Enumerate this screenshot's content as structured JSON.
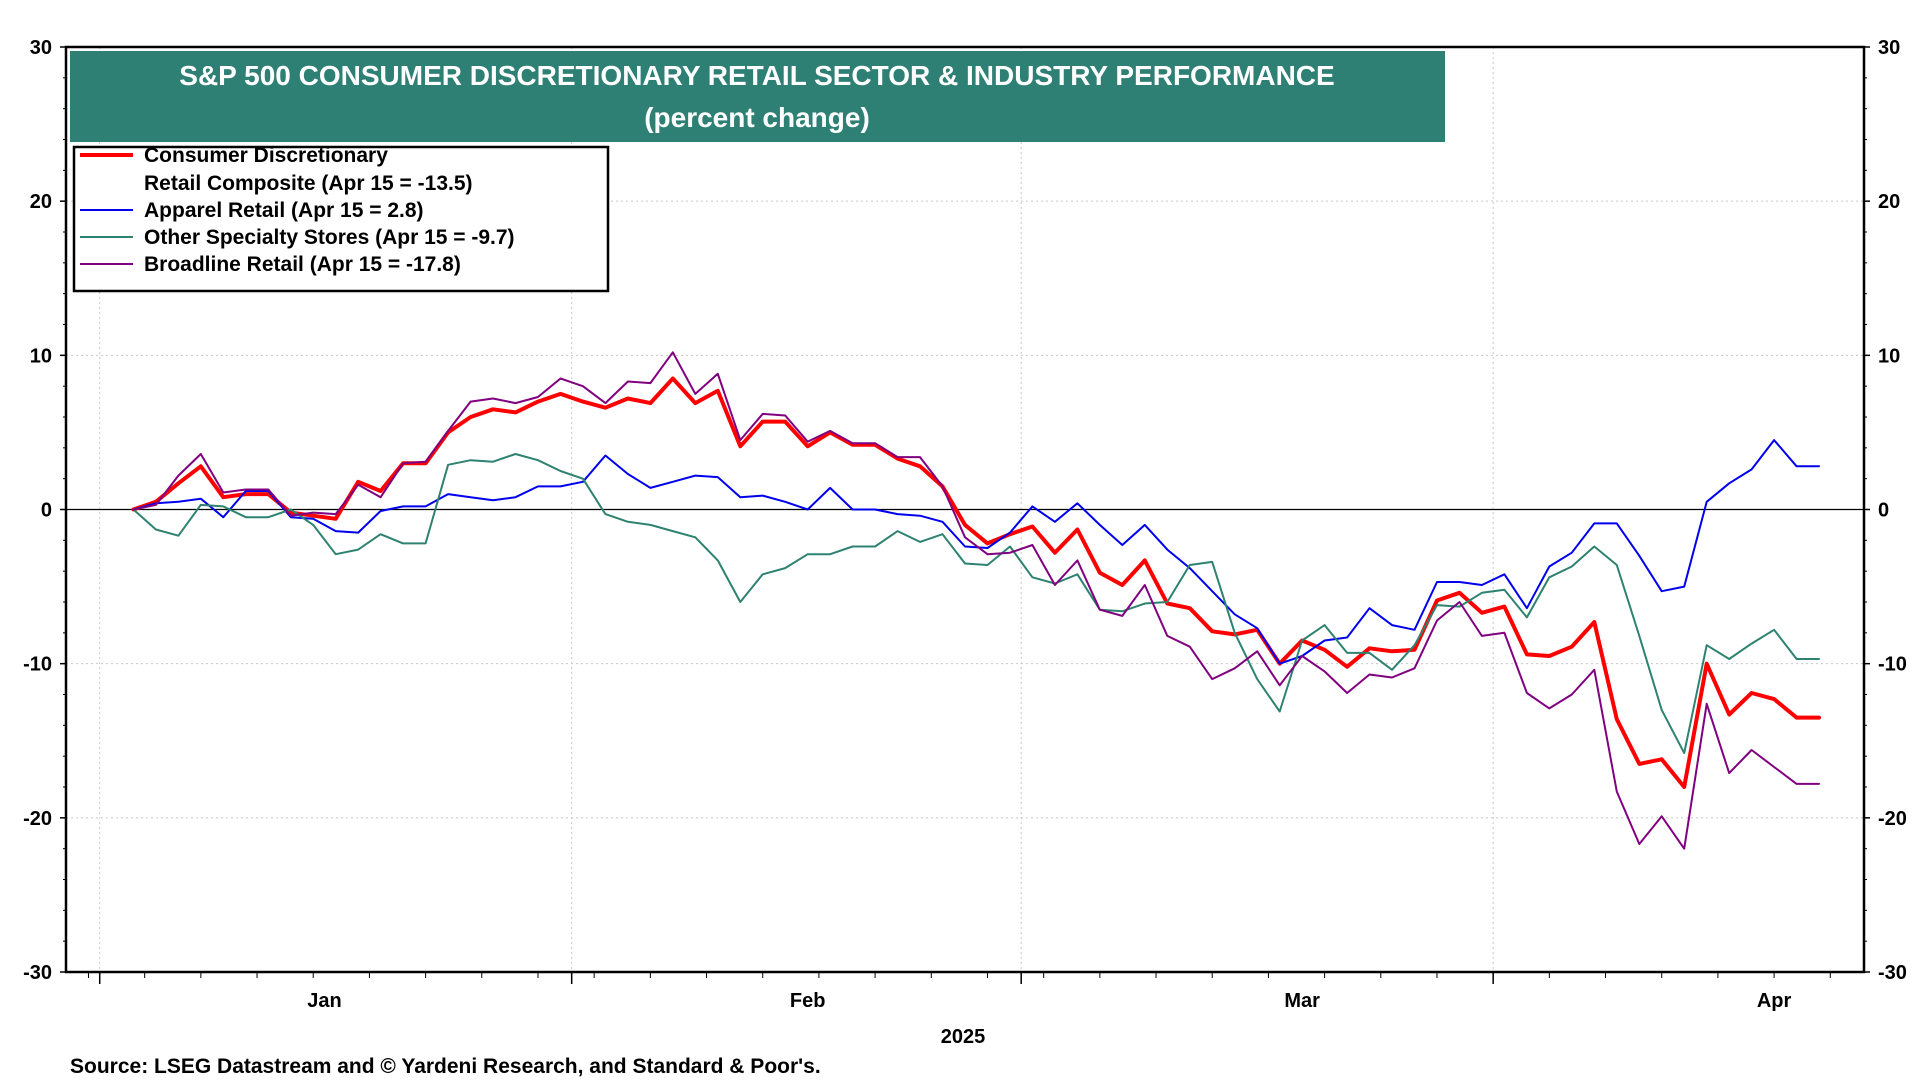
{
  "chart_data": {
    "type": "line",
    "title": "S&P 500 CONSUMER DISCRETIONARY RETAIL SECTOR & INDUSTRY PERFORMANCE",
    "subtitle": "(percent change)",
    "xlabel": "2025",
    "ylabel": "",
    "ylim": [
      -30,
      30
    ],
    "y_ticks": [
      30,
      20,
      10,
      0,
      -10,
      -20,
      -30
    ],
    "x_month_labels": [
      {
        "label": "Jan",
        "t": 8.5
      },
      {
        "label": "Feb",
        "t": 30.0
      },
      {
        "label": "Mar",
        "t": 52.0
      },
      {
        "label": "Apr",
        "t": 73.0
      }
    ],
    "x_range_trading_days": [
      -3,
      77
    ],
    "grid": true,
    "legend_position": "top-left",
    "source": "Source: LSEG Datastream and © Yardeni Research, and Standard & Poor's.",
    "series": [
      {
        "name": "Consumer Discretionary Retail Composite (Apr 15 = -13.5)",
        "legend_lines": [
          "Consumer Discretionary",
          "Retail Composite (Apr 15 = -13.5)"
        ],
        "color": "#ff0000",
        "width": 4,
        "values": [
          0,
          0.5,
          1.7,
          2.8,
          0.8,
          1.0,
          1.0,
          -0.2,
          -0.4,
          -0.6,
          1.8,
          1.2,
          3.0,
          3.0,
          5.0,
          6.0,
          6.5,
          6.3,
          7.0,
          7.5,
          7.0,
          6.6,
          7.2,
          6.9,
          8.5,
          6.9,
          7.7,
          4.1,
          5.7,
          5.7,
          4.1,
          5.0,
          4.2,
          4.2,
          3.3,
          2.8,
          1.5,
          -1.0,
          -2.2,
          -1.6,
          -1.1,
          -2.8,
          -1.3,
          -4.1,
          -4.9,
          -3.3,
          -6.1,
          -6.4,
          -7.9,
          -8.1,
          -7.8,
          -10.0,
          -8.5,
          -9.1,
          -10.2,
          -9.0,
          -9.2,
          -9.1,
          -5.9,
          -5.4,
          -6.7,
          -6.3,
          -9.4,
          -9.5,
          -8.9,
          -7.3,
          -13.6,
          -16.5,
          -16.2,
          -18.0,
          -10.0,
          -13.3,
          -11.9,
          -12.3,
          -13.5,
          -13.5
        ]
      },
      {
        "name": "Apparel Retail (Apr 15 = 2.8)",
        "legend_lines": [
          "Apparel Retail (Apr 15 = 2.8)"
        ],
        "color": "#0000ee",
        "width": 2,
        "values": [
          0,
          0.4,
          0.5,
          0.7,
          -0.5,
          1.2,
          1.2,
          -0.5,
          -0.6,
          -1.4,
          -1.5,
          -0.1,
          0.2,
          0.2,
          1.0,
          0.8,
          0.6,
          0.8,
          1.5,
          1.5,
          1.8,
          3.5,
          2.3,
          1.4,
          1.8,
          2.2,
          2.1,
          0.8,
          0.9,
          0.5,
          0.0,
          1.4,
          0.0,
          0.0,
          -0.3,
          -0.4,
          -0.8,
          -2.4,
          -2.5,
          -1.5,
          0.2,
          -0.8,
          0.4,
          -1.0,
          -2.3,
          -1.0,
          -2.6,
          -3.8,
          -5.3,
          -6.8,
          -7.7,
          -10.0,
          -9.5,
          -8.5,
          -8.3,
          -6.4,
          -7.5,
          -7.8,
          -4.7,
          -4.7,
          -4.9,
          -4.2,
          -6.4,
          -3.7,
          -2.8,
          -0.9,
          -0.9,
          -3.0,
          -5.3,
          -5.0,
          0.5,
          1.7,
          2.6,
          4.5,
          2.8,
          2.8
        ]
      },
      {
        "name": "Other Specialty Stores (Apr 15 = -9.7)",
        "legend_lines": [
          "Other Specialty Stores (Apr 15 = -9.7)"
        ],
        "color": "#2e8270",
        "width": 2,
        "values": [
          0,
          -1.3,
          -1.7,
          0.3,
          0.2,
          -0.5,
          -0.5,
          0.0,
          -1.0,
          -2.9,
          -2.6,
          -1.6,
          -2.2,
          -2.2,
          2.9,
          3.2,
          3.1,
          3.6,
          3.2,
          2.5,
          2.0,
          -0.3,
          -0.8,
          -1.0,
          -1.4,
          -1.8,
          -3.3,
          -6.0,
          -4.2,
          -3.8,
          -2.9,
          -2.9,
          -2.4,
          -2.4,
          -1.4,
          -2.1,
          -1.6,
          -3.5,
          -3.6,
          -2.4,
          -4.4,
          -4.8,
          -4.2,
          -6.5,
          -6.6,
          -6.1,
          -6.0,
          -3.6,
          -3.4,
          -8.0,
          -11.0,
          -13.1,
          -8.5,
          -7.5,
          -9.3,
          -9.3,
          -10.4,
          -8.8,
          -6.2,
          -6.3,
          -5.4,
          -5.2,
          -7.0,
          -4.4,
          -3.7,
          -2.4,
          -3.6,
          -8.2,
          -13.0,
          -15.8,
          -8.8,
          -9.7,
          -8.7,
          -7.8,
          -9.7,
          -9.7
        ]
      },
      {
        "name": "Broadline Retail (Apr 15 = -17.8)",
        "legend_lines": [
          "Broadline Retail (Apr 15 = -17.8)"
        ],
        "color": "#800080",
        "width": 2,
        "values": [
          0,
          0.3,
          2.2,
          3.6,
          1.1,
          1.3,
          1.3,
          -0.4,
          -0.2,
          -0.3,
          1.6,
          0.8,
          3.0,
          3.1,
          5.1,
          7.0,
          7.2,
          6.9,
          7.3,
          8.5,
          8.0,
          6.9,
          8.3,
          8.2,
          10.2,
          7.5,
          8.8,
          4.5,
          6.2,
          6.1,
          4.4,
          5.1,
          4.3,
          4.3,
          3.4,
          3.4,
          1.5,
          -1.8,
          -2.9,
          -2.8,
          -2.3,
          -4.9,
          -3.3,
          -6.5,
          -6.9,
          -4.9,
          -8.2,
          -8.9,
          -11.0,
          -10.3,
          -9.2,
          -11.4,
          -9.5,
          -10.5,
          -11.9,
          -10.7,
          -10.9,
          -10.3,
          -7.2,
          -6.0,
          -8.2,
          -8.0,
          -11.9,
          -12.9,
          -12.0,
          -10.4,
          -18.3,
          -21.7,
          -19.9,
          -22.0,
          -12.6,
          -17.1,
          -15.6,
          -16.7,
          -17.8,
          -17.8
        ]
      }
    ]
  }
}
